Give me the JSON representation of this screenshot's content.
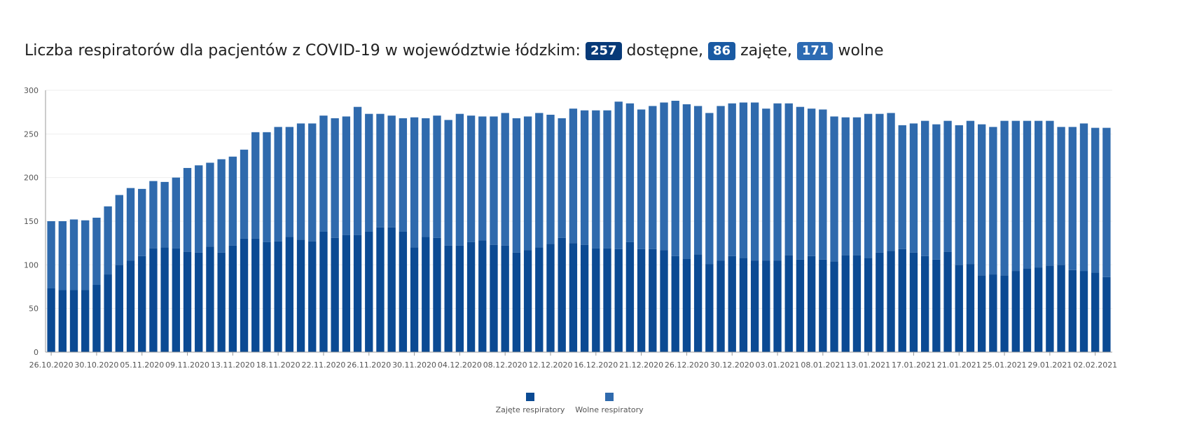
{
  "title": {
    "prefix": "Liczba respiratorów dla pacjentów z COVID-19 w województwie łódzkim:",
    "total": "257",
    "total_label": "dostępne,",
    "occupied": "86",
    "occupied_label": "zajęte,",
    "free": "171",
    "free_label": "wolne"
  },
  "colors": {
    "occupied": "#0b4a93",
    "free": "#2f6aad",
    "badge_total": "#073a78",
    "badge_occupied": "#1a5aa3",
    "badge_free": "#2d6bb3"
  },
  "chart_data": {
    "type": "bar",
    "stacked": true,
    "grid": true,
    "legend_position": "bottom-center",
    "ylim": [
      0,
      300
    ],
    "yticks": [
      0,
      50,
      100,
      150,
      200,
      250,
      300
    ],
    "xtick_labels": [
      "26.10.2020",
      "30.10.2020",
      "05.11.2020",
      "09.11.2020",
      "13.11.2020",
      "18.11.2020",
      "22.11.2020",
      "26.11.2020",
      "30.11.2020",
      "04.12.2020",
      "08.12.2020",
      "12.12.2020",
      "16.12.2020",
      "21.12.2020",
      "26.12.2020",
      "30.12.2020",
      "03.01.2021",
      "08.01.2021",
      "13.01.2021",
      "17.01.2021",
      "21.01.2021",
      "25.01.2021",
      "29.01.2021",
      "02.02.2021"
    ],
    "series": [
      {
        "name": "Zajęte respiratory",
        "values": [
          73,
          71,
          71,
          71,
          77,
          89,
          100,
          105,
          110,
          119,
          120,
          119,
          115,
          114,
          121,
          114,
          122,
          130,
          130,
          126,
          127,
          132,
          129,
          127,
          138,
          131,
          134,
          134,
          138,
          143,
          143,
          138,
          120,
          132,
          131,
          122,
          122,
          126,
          128,
          123,
          122,
          114,
          117,
          120,
          124,
          131,
          125,
          123,
          119,
          119,
          118,
          126,
          118,
          118,
          117,
          110,
          107,
          112,
          101,
          105,
          110,
          108,
          105,
          105,
          105,
          111,
          106,
          110,
          106,
          104,
          111,
          111,
          108,
          114,
          116,
          118,
          114,
          110,
          106,
          115,
          100,
          101,
          88,
          89,
          88,
          93,
          96,
          97,
          99,
          100,
          94,
          93,
          91,
          86
        ]
      },
      {
        "name": "Wolne respiratory",
        "values": [
          77,
          79,
          81,
          80,
          77,
          78,
          80,
          83,
          77,
          77,
          75,
          81,
          96,
          100,
          96,
          107,
          102,
          102,
          122,
          126,
          131,
          126,
          133,
          135,
          133,
          137,
          136,
          147,
          135,
          130,
          128,
          130,
          149,
          136,
          140,
          144,
          151,
          145,
          142,
          147,
          152,
          154,
          153,
          154,
          148,
          137,
          154,
          154,
          158,
          158,
          169,
          159,
          160,
          164,
          169,
          178,
          177,
          170,
          173,
          177,
          175,
          178,
          181,
          174,
          180,
          174,
          175,
          169,
          172,
          166,
          158,
          158,
          165,
          159,
          158,
          142,
          148,
          155,
          155,
          150,
          160,
          164,
          173,
          169,
          177,
          172,
          169,
          168,
          166,
          158,
          164,
          169,
          166,
          171
        ]
      }
    ]
  }
}
